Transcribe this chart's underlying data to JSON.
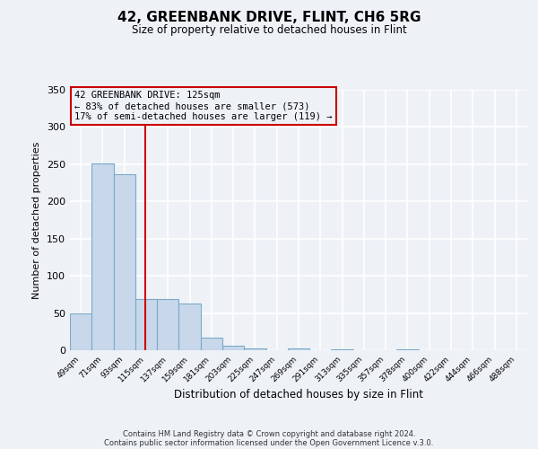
{
  "title": "42, GREENBANK DRIVE, FLINT, CH6 5RG",
  "subtitle": "Size of property relative to detached houses in Flint",
  "xlabel": "Distribution of detached houses by size in Flint",
  "ylabel": "Number of detached properties",
  "bar_color": "#c8d8ea",
  "bar_edge_color": "#7aaac8",
  "bin_labels": [
    "49sqm",
    "71sqm",
    "93sqm",
    "115sqm",
    "137sqm",
    "159sqm",
    "181sqm",
    "203sqm",
    "225sqm",
    "247sqm",
    "269sqm",
    "291sqm",
    "313sqm",
    "335sqm",
    "357sqm",
    "378sqm",
    "400sqm",
    "422sqm",
    "444sqm",
    "466sqm",
    "488sqm"
  ],
  "bar_heights": [
    49,
    251,
    236,
    69,
    69,
    63,
    17,
    6,
    2,
    0,
    2,
    0,
    1,
    0,
    0,
    1,
    0,
    0,
    0,
    0,
    0
  ],
  "property_line_color": "#cc0000",
  "annotation_title": "42 GREENBANK DRIVE: 125sqm",
  "annotation_line1": "← 83% of detached houses are smaller (573)",
  "annotation_line2": "17% of semi-detached houses are larger (119) →",
  "annotation_box_color": "#cc0000",
  "ylim": [
    0,
    350
  ],
  "footer1": "Contains HM Land Registry data © Crown copyright and database right 2024.",
  "footer2": "Contains public sector information licensed under the Open Government Licence v.3.0.",
  "background_color": "#eef2f7",
  "grid_color": "#ffffff"
}
